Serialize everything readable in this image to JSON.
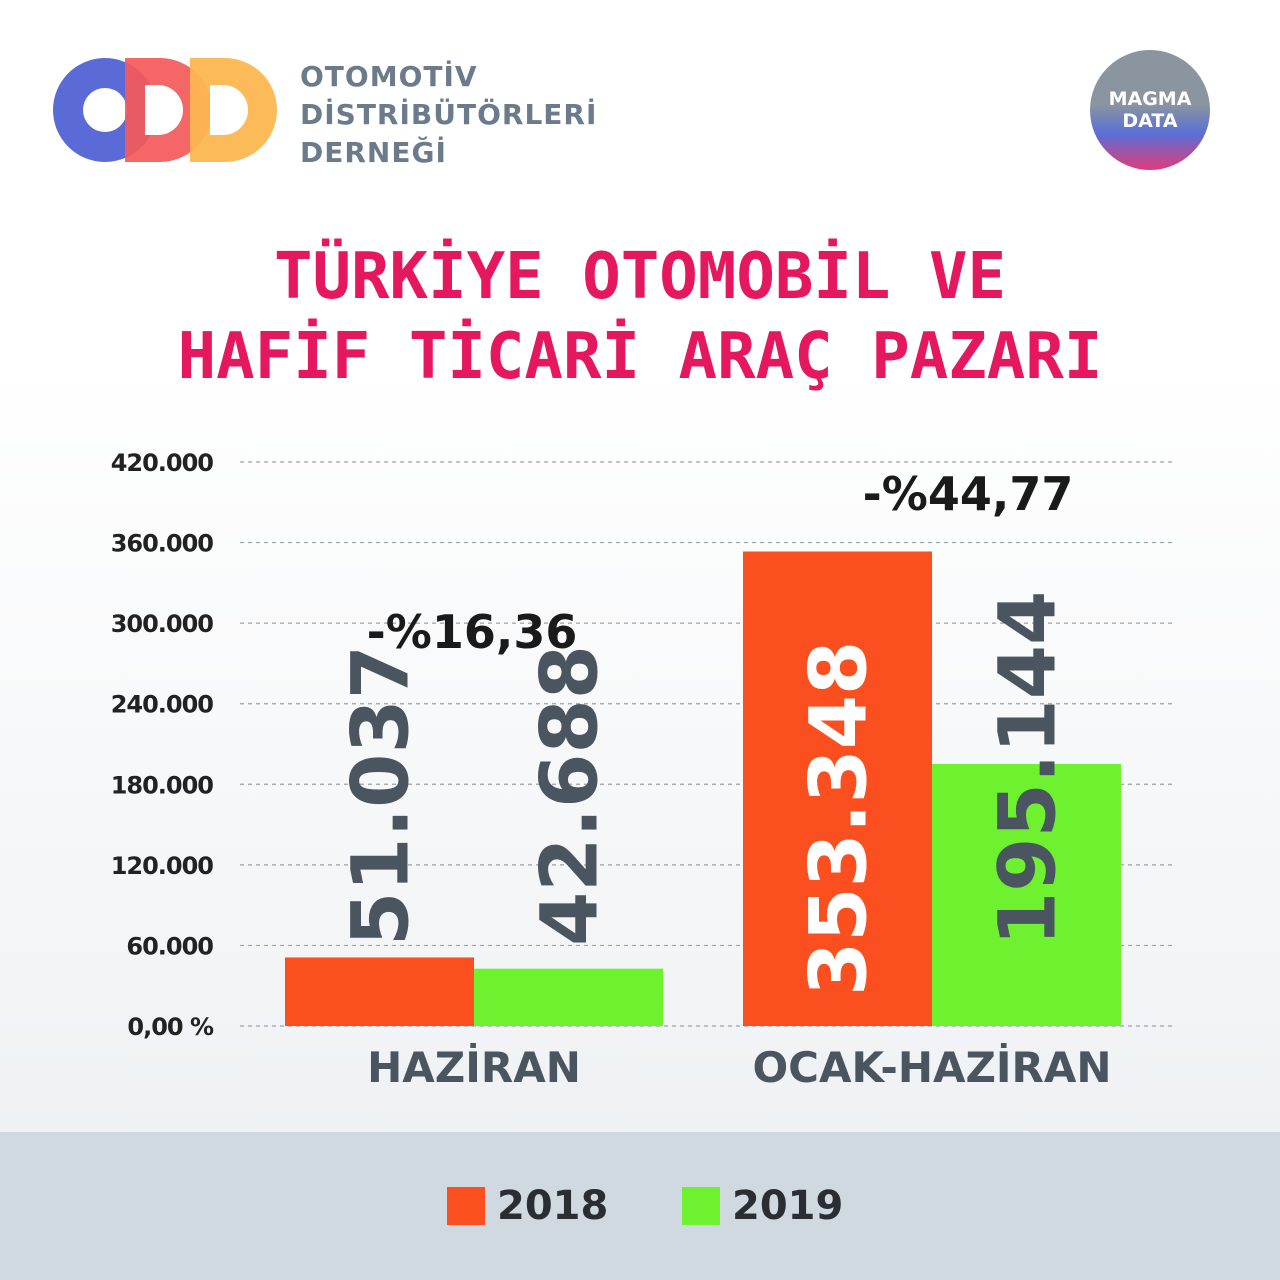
{
  "header": {
    "org_lines": [
      "OTOMOTİV",
      "DİSTRİBÜTÖRLERİ",
      "DERNEĞİ"
    ],
    "logo_text": "ODD",
    "badge_lines": [
      "MAGMA",
      "DATA"
    ]
  },
  "colors": {
    "title": "#e5175f",
    "series_2018": "#fc4f1f",
    "series_2019": "#6ef230",
    "axis_text": "#222222",
    "value_label_outside": "#4a5560",
    "value_label_inside": "#ffffff"
  },
  "chart_data": {
    "type": "bar",
    "title_lines": [
      "TÜRKİYE OTOMOBİL VE",
      "HAFİF TİCARİ ARAÇ PAZARI"
    ],
    "categories": [
      "HAZİRAN",
      "OCAK-HAZİRAN"
    ],
    "series": [
      {
        "name": "2018",
        "values": [
          51037,
          353348
        ],
        "labels": [
          "51.037",
          "353.348"
        ]
      },
      {
        "name": "2019",
        "values": [
          42688,
          195144
        ],
        "labels": [
          "42.688",
          "195.144"
        ]
      }
    ],
    "change_labels": [
      "-%16,36",
      "-%44,77"
    ],
    "y_ticks": [
      0,
      60000,
      120000,
      180000,
      240000,
      300000,
      360000,
      420000
    ],
    "y_tick_labels": [
      "0,00 %",
      "60.000",
      "120.000",
      "180.000",
      "240.000",
      "300.000",
      "360.000",
      "420.000"
    ],
    "ylim": [
      0,
      420000
    ],
    "grid": true,
    "legend_position": "bottom"
  }
}
